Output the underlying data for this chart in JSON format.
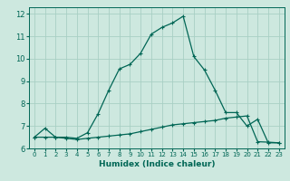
{
  "title": "",
  "xlabel": "Humidex (Indice chaleur)",
  "ylabel": "",
  "background_color": "#cde8df",
  "grid_color": "#a8cfc4",
  "line_color": "#006655",
  "xlim": [
    -0.5,
    23.5
  ],
  "ylim": [
    6.0,
    12.3
  ],
  "xticks": [
    0,
    1,
    2,
    3,
    4,
    5,
    6,
    7,
    8,
    9,
    10,
    11,
    12,
    13,
    14,
    15,
    16,
    17,
    18,
    19,
    20,
    21,
    22,
    23
  ],
  "yticks": [
    6,
    7,
    8,
    9,
    10,
    11,
    12
  ],
  "line1_x": [
    0,
    1,
    2,
    3,
    4,
    5,
    6,
    7,
    8,
    9,
    10,
    11,
    12,
    13,
    14,
    15,
    16,
    17,
    18,
    19,
    20,
    21,
    22,
    23
  ],
  "line1_y": [
    6.5,
    6.9,
    6.5,
    6.5,
    6.45,
    6.7,
    7.55,
    8.6,
    9.55,
    9.75,
    10.25,
    11.1,
    11.4,
    11.6,
    11.9,
    10.1,
    9.5,
    8.6,
    7.6,
    7.6,
    7.0,
    7.3,
    6.25,
    6.25
  ],
  "line2_x": [
    0,
    1,
    2,
    3,
    4,
    5,
    6,
    7,
    8,
    9,
    10,
    11,
    12,
    13,
    14,
    15,
    16,
    17,
    18,
    19,
    20,
    21,
    22,
    23
  ],
  "line2_y": [
    6.5,
    6.5,
    6.5,
    6.45,
    6.4,
    6.45,
    6.5,
    6.55,
    6.6,
    6.65,
    6.75,
    6.85,
    6.95,
    7.05,
    7.1,
    7.15,
    7.2,
    7.25,
    7.35,
    7.4,
    7.45,
    6.3,
    6.28,
    6.25
  ]
}
